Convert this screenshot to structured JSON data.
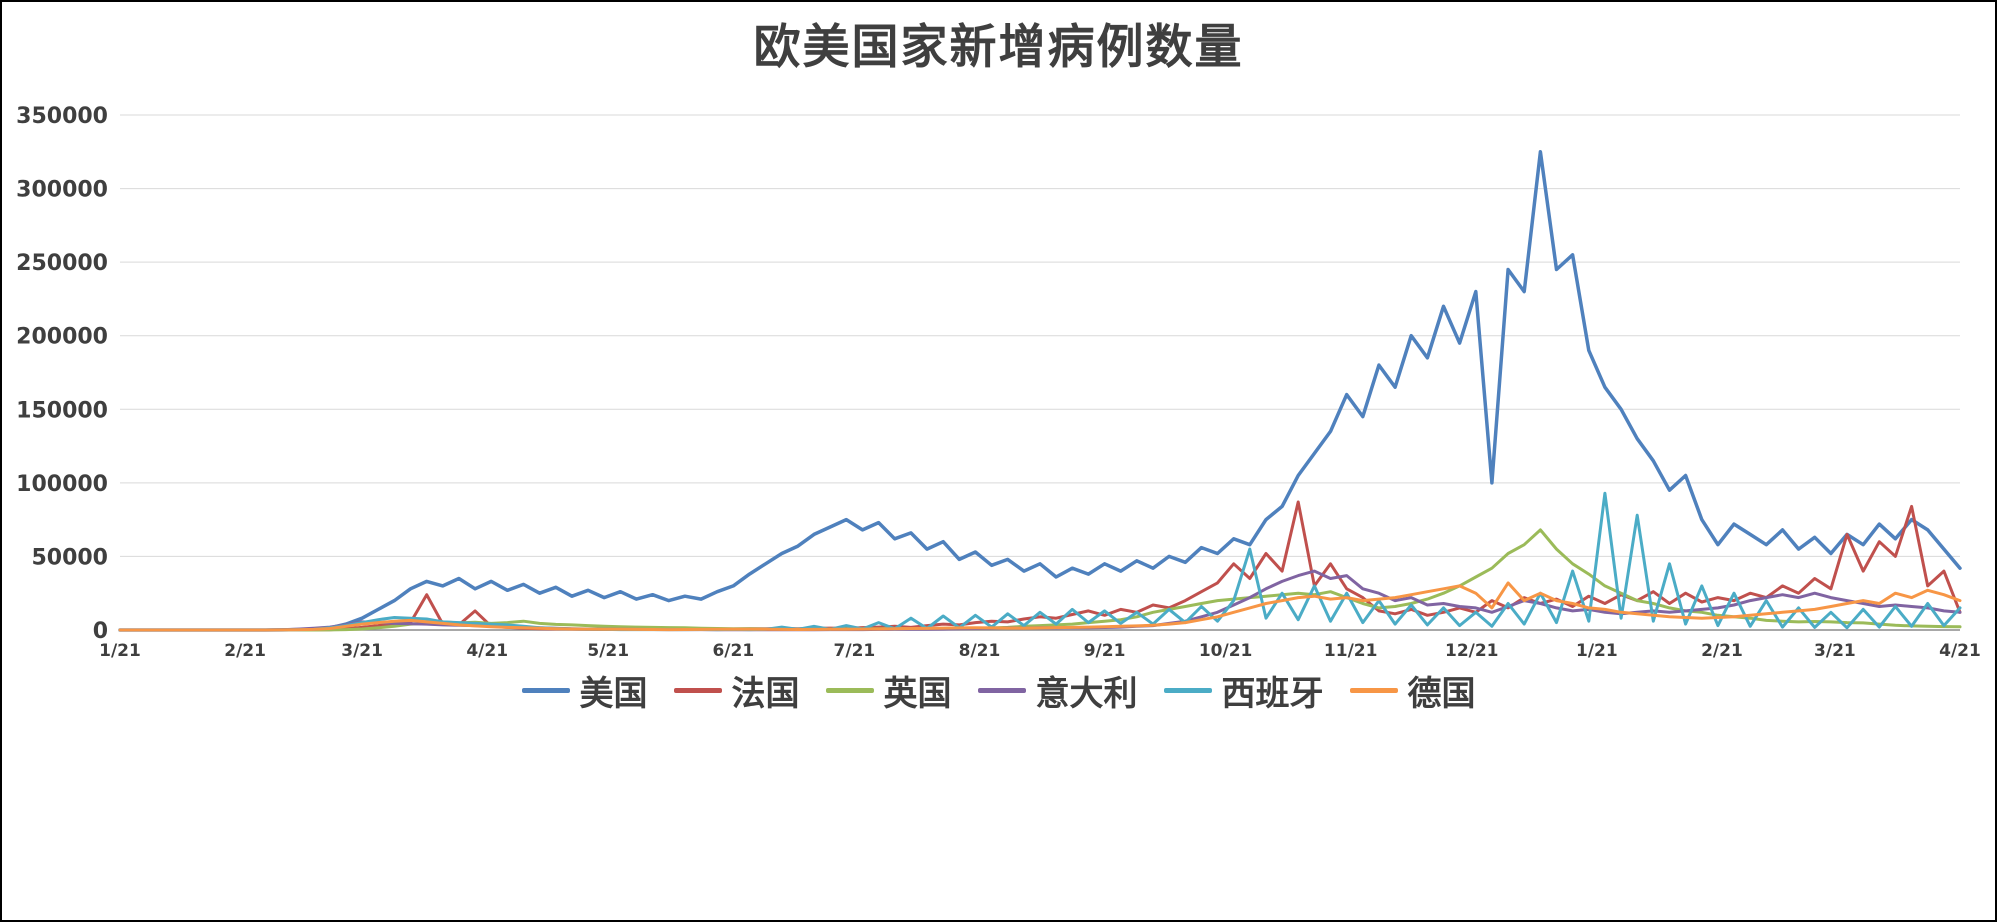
{
  "page": {
    "background": "#ffffff",
    "border_color": "#000000"
  },
  "chart_data": {
    "type": "line",
    "title": "欧美国家新增病例数量",
    "xlabel": "",
    "ylabel": "",
    "ylim": [
      0,
      350000
    ],
    "y_ticks": [
      0,
      50000,
      100000,
      150000,
      200000,
      250000,
      300000,
      350000
    ],
    "grid": "horizontal",
    "legend_position": "bottom",
    "colors": {
      "gridline": "#D9D9D9",
      "axis": "#8C8C8C",
      "text": "#3F3F3F",
      "title": "#3F3F3F"
    },
    "day_range": [
      0,
      456
    ],
    "sample_interval_days": 4,
    "x_tick_days": [
      0,
      31,
      60,
      91,
      121,
      152,
      182,
      213,
      244,
      274,
      305,
      335,
      366,
      397,
      425,
      456
    ],
    "x_tick_labels": [
      "1/21",
      "2/21",
      "3/21",
      "4/21",
      "5/21",
      "6/21",
      "7/21",
      "8/21",
      "9/21",
      "10/21",
      "11/21",
      "12/21",
      "1/21",
      "2/21",
      "3/21",
      "4/21"
    ],
    "series": [
      {
        "id": "usa",
        "name": "美国",
        "color": "#4F81BD",
        "width": 3.5,
        "values": [
          0,
          0,
          0,
          0,
          0,
          0,
          0,
          0,
          0,
          0,
          100,
          300,
          600,
          1500,
          4000,
          8000,
          14000,
          20000,
          28000,
          33000,
          30000,
          35000,
          28000,
          33000,
          27000,
          31000,
          25000,
          29000,
          23000,
          27000,
          22000,
          26000,
          21000,
          24000,
          20000,
          23000,
          21000,
          26000,
          30000,
          38000,
          45000,
          52000,
          57000,
          65000,
          70000,
          75000,
          68000,
          73000,
          62000,
          66000,
          55000,
          60000,
          48000,
          53000,
          44000,
          48000,
          40000,
          45000,
          36000,
          42000,
          38000,
          45000,
          40000,
          47000,
          42000,
          50000,
          46000,
          56000,
          52000,
          62000,
          58000,
          75000,
          84000,
          105000,
          120000,
          135000,
          160000,
          145000,
          180000,
          165000,
          200000,
          185000,
          220000,
          195000,
          230000,
          100000,
          245000,
          230000,
          325000,
          245000,
          255000,
          190000,
          165000,
          150000,
          130000,
          115000,
          95000,
          105000,
          75000,
          58000,
          72000,
          65000,
          58000,
          68000,
          55000,
          63000,
          52000,
          65000,
          58000,
          72000,
          62000,
          75000,
          68000,
          55000,
          42000
        ]
      },
      {
        "id": "france",
        "name": "法国",
        "color": "#C0504D",
        "width": 3,
        "values": [
          0,
          0,
          0,
          0,
          0,
          0,
          0,
          0,
          0,
          0,
          10,
          30,
          80,
          200,
          800,
          1800,
          3000,
          4500,
          5000,
          24000,
          4000,
          3500,
          13000,
          2500,
          1800,
          1200,
          900,
          700,
          600,
          500,
          400,
          350,
          500,
          400,
          500,
          450,
          500,
          600,
          700,
          800,
          900,
          1000,
          900,
          1100,
          1300,
          1100,
          1600,
          2000,
          2500,
          1800,
          3000,
          4000,
          3500,
          5000,
          6000,
          5500,
          7500,
          9000,
          8000,
          10500,
          13000,
          10000,
          14000,
          12000,
          17000,
          15000,
          20000,
          26000,
          32000,
          45000,
          35000,
          52000,
          40000,
          87000,
          30000,
          45000,
          28000,
          22000,
          13000,
          11000,
          14000,
          10000,
          12000,
          15000,
          12000,
          20000,
          15000,
          22000,
          18000,
          21000,
          16000,
          23000,
          18000,
          24000,
          20000,
          26000,
          18000,
          25000,
          19000,
          22000,
          20000,
          25000,
          22000,
          30000,
          25000,
          35000,
          28000,
          65000,
          40000,
          60000,
          50000,
          84000,
          30000,
          40000,
          12000
        ]
      },
      {
        "id": "uk",
        "name": "英国",
        "color": "#9BBB59",
        "width": 3,
        "values": [
          0,
          0,
          0,
          0,
          0,
          0,
          0,
          0,
          0,
          0,
          0,
          0,
          0,
          100,
          300,
          700,
          1500,
          2500,
          4000,
          4500,
          5500,
          4800,
          5200,
          4500,
          5000,
          6000,
          4500,
          3800,
          3500,
          3000,
          2500,
          2200,
          2000,
          1800,
          1600,
          1500,
          1200,
          1000,
          900,
          800,
          700,
          650,
          600,
          650,
          700,
          750,
          800,
          900,
          1000,
          950,
          1100,
          1000,
          1200,
          1300,
          1400,
          1800,
          2500,
          3000,
          3500,
          4000,
          5000,
          6000,
          7000,
          9000,
          12000,
          14000,
          16000,
          18000,
          20000,
          21000,
          22000,
          23000,
          24000,
          25000,
          24000,
          26000,
          22000,
          18000,
          15000,
          16000,
          18000,
          21000,
          25000,
          30000,
          36000,
          42000,
          52000,
          58000,
          68000,
          55000,
          45000,
          38000,
          30000,
          25000,
          20000,
          18000,
          15000,
          13000,
          12000,
          10000,
          9000,
          8000,
          6500,
          6000,
          5500,
          5800,
          5500,
          5000,
          4800,
          4000,
          3200,
          2800,
          2500,
          2300,
          2200
        ]
      },
      {
        "id": "italy",
        "name": "意大利",
        "color": "#8064A2",
        "width": 3,
        "values": [
          0,
          0,
          0,
          0,
          0,
          0,
          0,
          0,
          0,
          20,
          200,
          600,
          1200,
          2000,
          3500,
          5500,
          5200,
          4500,
          4300,
          4000,
          3500,
          3200,
          3000,
          2600,
          2200,
          1900,
          1500,
          1200,
          900,
          700,
          600,
          500,
          400,
          350,
          300,
          280,
          250,
          220,
          200,
          200,
          200,
          220,
          200,
          230,
          250,
          250,
          300,
          400,
          500,
          450,
          550,
          600,
          800,
          1000,
          1200,
          1400,
          1300,
          1500,
          1400,
          1600,
          1500,
          1700,
          2000,
          2500,
          3000,
          4500,
          6000,
          9000,
          12000,
          17000,
          22000,
          28000,
          33000,
          37000,
          40000,
          35000,
          37000,
          28000,
          25000,
          20000,
          22000,
          17000,
          18000,
          16000,
          15000,
          12000,
          16000,
          20000,
          18000,
          15000,
          13000,
          14000,
          12000,
          11000,
          12000,
          13000,
          12000,
          13000,
          14000,
          15000,
          17000,
          20000,
          22000,
          24000,
          22000,
          25000,
          22000,
          20000,
          18000,
          16000,
          17000,
          16000,
          15000,
          13000,
          12000
        ]
      },
      {
        "id": "spain",
        "name": "西班牙",
        "color": "#4BACC6",
        "width": 3,
        "values": [
          0,
          0,
          0,
          0,
          0,
          0,
          0,
          0,
          0,
          0,
          50,
          150,
          400,
          1500,
          3000,
          5000,
          7000,
          8500,
          8000,
          7500,
          5500,
          5000,
          4500,
          4000,
          3500,
          2500,
          1500,
          1000,
          700,
          500,
          400,
          300,
          250,
          300,
          250,
          300,
          350,
          300,
          400,
          300,
          500,
          2000,
          400,
          2500,
          500,
          3000,
          700,
          5000,
          800,
          8000,
          1000,
          9500,
          1500,
          10000,
          2000,
          11000,
          3000,
          12000,
          4000,
          14000,
          5000,
          13000,
          4500,
          12000,
          4000,
          14000,
          5000,
          16000,
          6000,
          20000,
          55000,
          8000,
          25000,
          7000,
          30000,
          6000,
          25000,
          5000,
          20000,
          4000,
          17000,
          3500,
          15000,
          3000,
          12000,
          2500,
          18000,
          4000,
          25000,
          5000,
          40000,
          6000,
          93000,
          8000,
          78000,
          6000,
          45000,
          4000,
          30000,
          3000,
          25000,
          2500,
          20000,
          2000,
          15000,
          1800,
          12000,
          1500,
          14000,
          2000,
          16000,
          2500,
          18000,
          3000,
          15000
        ]
      },
      {
        "id": "germany",
        "name": "德国",
        "color": "#F79646",
        "width": 3,
        "values": [
          0,
          0,
          0,
          0,
          0,
          0,
          0,
          0,
          0,
          0,
          60,
          150,
          400,
          1000,
          2500,
          4000,
          5000,
          6000,
          6500,
          5500,
          4500,
          3500,
          2800,
          2200,
          1800,
          1500,
          1200,
          900,
          700,
          600,
          500,
          450,
          400,
          350,
          300,
          350,
          400,
          500,
          600,
          500,
          450,
          400,
          350,
          400,
          450,
          500,
          600,
          700,
          800,
          1000,
          1100,
          1300,
          1400,
          1500,
          1400,
          1300,
          1200,
          1400,
          1600,
          1800,
          2000,
          2200,
          2500,
          2800,
          3200,
          4000,
          5000,
          7000,
          9000,
          12000,
          15000,
          18000,
          20000,
          22000,
          23000,
          21000,
          22000,
          20000,
          21000,
          22000,
          24000,
          26000,
          28000,
          30000,
          25000,
          15000,
          32000,
          20000,
          25000,
          20000,
          18000,
          15000,
          14000,
          12000,
          11000,
          10000,
          9000,
          8500,
          8000,
          8500,
          9000,
          10000,
          11000,
          12000,
          13000,
          14000,
          16000,
          18000,
          20000,
          18000,
          25000,
          22000,
          27000,
          24000,
          20000
        ]
      }
    ]
  }
}
